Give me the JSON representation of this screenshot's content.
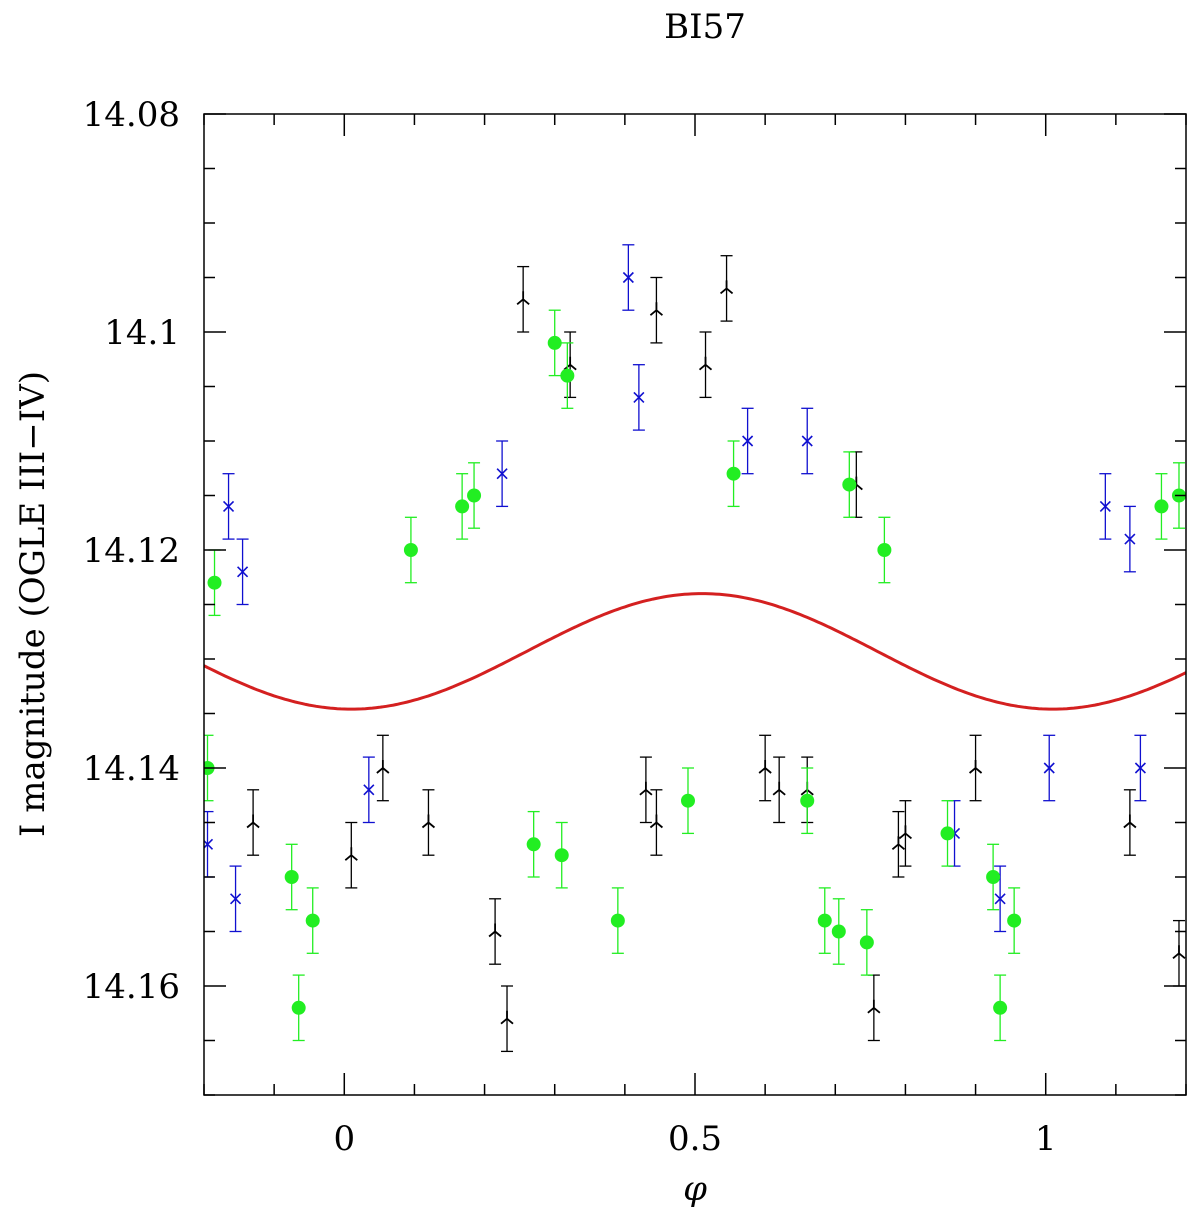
{
  "chart_data": {
    "type": "scatter",
    "title": "BI57",
    "xlabel": "φ",
    "ylabel": "I magnitude (OGLE III−IV)",
    "xlim": [
      -0.2,
      1.2
    ],
    "ylim": [
      14.08,
      14.17
    ],
    "y_inverted": true,
    "x_ticks": [
      0,
      0.5,
      1
    ],
    "y_ticks": [
      14.08,
      14.1,
      14.12,
      14.14,
      14.16
    ],
    "x_tick_labels": [
      "0",
      "0.5",
      "1"
    ],
    "y_tick_labels": [
      "14.08",
      "14.1",
      "14.12",
      "14.14",
      "14.16"
    ],
    "grid": false,
    "series": [
      {
        "marker": "three-pointed star",
        "color": "#000000",
        "error_bars": true,
        "points": [
          {
            "x": 0.215,
            "y": 14.155,
            "err": 0.003
          },
          {
            "x": 0.232,
            "y": 14.163,
            "err": 0.003
          },
          {
            "x": 0.255,
            "y": 14.097,
            "err": 0.003
          },
          {
            "x": 0.322,
            "y": 14.103,
            "err": 0.003
          },
          {
            "x": 0.43,
            "y": 14.142,
            "err": 0.003
          },
          {
            "x": 0.445,
            "y": 14.145,
            "err": 0.003
          },
          {
            "x": 0.445,
            "y": 14.098,
            "err": 0.003
          },
          {
            "x": 0.515,
            "y": 14.103,
            "err": 0.003
          },
          {
            "x": 0.545,
            "y": 14.096,
            "err": 0.003
          },
          {
            "x": 0.6,
            "y": 14.14,
            "err": 0.003
          },
          {
            "x": 0.62,
            "y": 14.142,
            "err": 0.003
          },
          {
            "x": 0.66,
            "y": 14.142,
            "err": 0.003
          },
          {
            "x": 0.73,
            "y": 14.114,
            "err": 0.003
          },
          {
            "x": 0.755,
            "y": 14.162,
            "err": 0.003
          },
          {
            "x": 0.79,
            "y": 14.147,
            "err": 0.003
          },
          {
            "x": 0.8,
            "y": 14.146,
            "err": 0.003
          },
          {
            "x": 1.19,
            "y": 14.157,
            "err": 0.003
          },
          {
            "x": 0.01,
            "y": 14.148,
            "err": 0.003
          },
          {
            "x": 0.055,
            "y": 14.14,
            "err": 0.003
          },
          {
            "x": -0.13,
            "y": 14.145,
            "err": 0.003
          },
          {
            "x": 0.12,
            "y": 14.145,
            "err": 0.003
          },
          {
            "x": 0.9,
            "y": 14.14,
            "err": 0.003
          },
          {
            "x": 1.12,
            "y": 14.145,
            "err": 0.003
          }
        ]
      },
      {
        "marker": "cross",
        "color": "#1010d0",
        "error_bars": true,
        "points": [
          {
            "x": 0.405,
            "y": 14.095,
            "err": 0.003
          },
          {
            "x": 0.42,
            "y": 14.106,
            "err": 0.003
          },
          {
            "x": -0.165,
            "y": 14.116,
            "err": 0.003
          },
          {
            "x": -0.145,
            "y": 14.122,
            "err": 0.003
          },
          {
            "x": 0.225,
            "y": 14.113,
            "err": 0.003
          },
          {
            "x": 0.575,
            "y": 14.11,
            "err": 0.003
          },
          {
            "x": 0.66,
            "y": 14.11,
            "err": 0.003
          },
          {
            "x": 1.085,
            "y": 14.116,
            "err": 0.003
          },
          {
            "x": 1.12,
            "y": 14.119,
            "err": 0.003
          },
          {
            "x": -0.155,
            "y": 14.152,
            "err": 0.003
          },
          {
            "x": -0.195,
            "y": 14.147,
            "err": 0.003
          },
          {
            "x": 0.035,
            "y": 14.142,
            "err": 0.003
          },
          {
            "x": 0.87,
            "y": 14.146,
            "err": 0.003
          },
          {
            "x": 0.935,
            "y": 14.152,
            "err": 0.003
          },
          {
            "x": 1.005,
            "y": 14.14,
            "err": 0.003
          },
          {
            "x": 1.135,
            "y": 14.14,
            "err": 0.003
          }
        ]
      },
      {
        "marker": "filled circle",
        "color": "#22ee22",
        "error_bars": true,
        "points": [
          {
            "x": 0.3,
            "y": 14.101,
            "err": 0.003
          },
          {
            "x": 0.318,
            "y": 14.104,
            "err": 0.003
          },
          {
            "x": 0.185,
            "y": 14.115,
            "err": 0.003
          },
          {
            "x": 0.168,
            "y": 14.116,
            "err": 0.003
          },
          {
            "x": 0.555,
            "y": 14.113,
            "err": 0.003
          },
          {
            "x": 0.72,
            "y": 14.114,
            "err": 0.003
          },
          {
            "x": 0.77,
            "y": 14.12,
            "err": 0.003
          },
          {
            "x": 1.165,
            "y": 14.116,
            "err": 0.003
          },
          {
            "x": 1.19,
            "y": 14.115,
            "err": 0.003
          },
          {
            "x": 0.095,
            "y": 14.12,
            "err": 0.003
          },
          {
            "x": -0.065,
            "y": 14.162,
            "err": 0.003
          },
          {
            "x": 0.935,
            "y": 14.162,
            "err": 0.003
          },
          {
            "x": 0.39,
            "y": 14.154,
            "err": 0.003
          },
          {
            "x": 0.685,
            "y": 14.154,
            "err": 0.003
          },
          {
            "x": 0.705,
            "y": 14.155,
            "err": 0.003
          },
          {
            "x": 0.745,
            "y": 14.156,
            "err": 0.003
          },
          {
            "x": -0.045,
            "y": 14.154,
            "err": 0.003
          },
          {
            "x": 0.955,
            "y": 14.154,
            "err": 0.003
          },
          {
            "x": -0.075,
            "y": 14.15,
            "err": 0.003
          },
          {
            "x": 0.925,
            "y": 14.15,
            "err": 0.003
          },
          {
            "x": 0.27,
            "y": 14.147,
            "err": 0.003
          },
          {
            "x": 0.31,
            "y": 14.148,
            "err": 0.003
          },
          {
            "x": 0.49,
            "y": 14.143,
            "err": 0.003
          },
          {
            "x": 0.66,
            "y": 14.143,
            "err": 0.003
          },
          {
            "x": 0.86,
            "y": 14.146,
            "err": 0.003
          },
          {
            "x": -0.195,
            "y": 14.14,
            "err": 0.003
          },
          {
            "x": -0.185,
            "y": 14.123,
            "err": 0.003
          }
        ]
      },
      {
        "name": "",
        "marker": "line",
        "color": "#d42020",
        "model": "sinusoid",
        "x": [
          -0.2,
          -0.1,
          0,
          0.05,
          0.1,
          0.2,
          0.3,
          0.4,
          0.5,
          0.52,
          0.6,
          0.7,
          0.8,
          0.9,
          1.0,
          1.05,
          1.1,
          1.2
        ],
        "values": [
          14.1323,
          14.1339,
          14.1346,
          14.1345,
          14.1339,
          14.1316,
          14.1284,
          14.1255,
          14.124,
          14.124,
          14.1247,
          14.1274,
          14.1307,
          14.1335,
          14.1346,
          14.1345,
          14.1339,
          14.1316
        ]
      }
    ]
  }
}
